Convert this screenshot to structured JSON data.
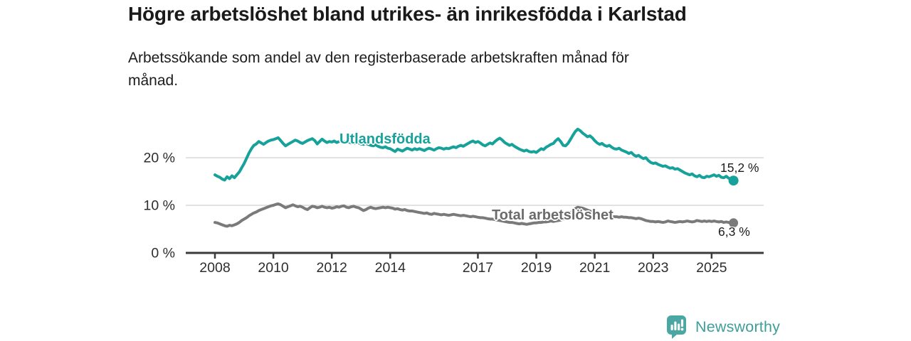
{
  "header": {
    "title": "Högre arbetslöshet bland utrikes- än inrikesfödda i Karlstad",
    "subtitle_lines": [
      "Arbetssökande som andel av den registerbaserade arbetskraften månad för",
      "månad."
    ]
  },
  "branding": {
    "name": "Newsworthy",
    "logo_icon": "newsworthy-speech-bubble-bar-chart-icon",
    "accent_color": "#4aa7a2",
    "text_color": "#3f9e99"
  },
  "chart_data": {
    "type": "line",
    "title": "Högre arbetslöshet bland utrikes- än inrikesfödda i Karlstad",
    "subtitle": "Arbetssökande som andel av den registerbaserade arbetskraften månad för månad.",
    "xlabel": "",
    "ylabel": "",
    "unit": "%",
    "grid": "horizontal",
    "legend_position": "inline-labels",
    "x_range": [
      2008.0,
      2025.75
    ],
    "ylim": [
      0,
      27.5
    ],
    "x_ticks": [
      2008,
      2010,
      2012,
      2014,
      2017,
      2019,
      2021,
      2023,
      2025
    ],
    "y_ticks": [
      {
        "value": 0,
        "label": "0 %"
      },
      {
        "value": 10,
        "label": "10 %"
      },
      {
        "value": 20,
        "label": "20 %"
      }
    ],
    "series": [
      {
        "id": "utlandsfodda",
        "name": "Utlandsfödda",
        "color": "#16a29a",
        "end_label": "15,2 %",
        "end_value": 15.2,
        "dot_radius": 7,
        "start": [
          2008,
          1
        ],
        "frequency": "monthly",
        "values": [
          16.4,
          16.1,
          15.9,
          15.5,
          15.3,
          16.0,
          15.6,
          16.2,
          15.8,
          16.4,
          17.0,
          17.9,
          18.8,
          19.9,
          21.0,
          21.9,
          22.6,
          22.9,
          23.4,
          23.1,
          22.8,
          23.2,
          23.5,
          23.7,
          23.8,
          24.0,
          24.2,
          23.6,
          23.0,
          22.5,
          22.8,
          23.1,
          23.4,
          23.7,
          23.5,
          23.2,
          23.0,
          23.3,
          23.6,
          23.8,
          24.0,
          23.6,
          22.9,
          23.4,
          23.9,
          23.5,
          23.2,
          23.4,
          23.3,
          23.5,
          23.2,
          23.4,
          23.6,
          23.4,
          23.2,
          23.3,
          23.1,
          23.0,
          23.2,
          23.1,
          22.9,
          22.8,
          23.0,
          22.8,
          22.6,
          22.5,
          22.7,
          22.4,
          22.2,
          22.1,
          22.3,
          22.0,
          21.9,
          21.6,
          21.3,
          21.8,
          21.6,
          21.4,
          21.7,
          22.0,
          21.8,
          21.6,
          21.9,
          21.7,
          21.9,
          21.7,
          21.5,
          21.8,
          22.0,
          21.8,
          21.6,
          21.9,
          22.1,
          22.0,
          21.8,
          22.0,
          21.9,
          22.1,
          22.3,
          22.1,
          22.4,
          22.6,
          22.4,
          22.7,
          23.0,
          23.3,
          23.5,
          23.2,
          23.4,
          23.1,
          22.7,
          22.5,
          22.8,
          23.1,
          22.9,
          23.4,
          23.8,
          24.1,
          23.7,
          23.2,
          22.9,
          22.6,
          22.8,
          22.4,
          22.1,
          21.8,
          21.6,
          21.4,
          21.6,
          21.3,
          21.2,
          21.3,
          21.1,
          21.5,
          21.9,
          21.7,
          22.2,
          22.5,
          22.8,
          23.0,
          23.6,
          24.0,
          23.4,
          22.6,
          22.5,
          23.0,
          23.8,
          24.7,
          25.5,
          26.0,
          25.7,
          25.2,
          24.8,
          24.4,
          24.6,
          24.2,
          23.6,
          23.1,
          22.8,
          23.0,
          22.6,
          22.4,
          22.6,
          22.2,
          21.9,
          21.8,
          22.0,
          21.6,
          21.4,
          21.2,
          20.9,
          21.1,
          20.6,
          20.3,
          20.5,
          20.1,
          19.8,
          20.0,
          19.4,
          19.0,
          18.8,
          18.9,
          18.6,
          18.4,
          18.2,
          18.3,
          18.0,
          17.8,
          17.9,
          17.6,
          17.7,
          17.4,
          17.1,
          16.8,
          16.6,
          16.4,
          16.6,
          16.2,
          16.0,
          16.3,
          15.9,
          15.8,
          16.1,
          16.0,
          16.2,
          16.4,
          16.1,
          16.3,
          15.9,
          15.8,
          16.1,
          15.7,
          15.5,
          15.2
        ]
      },
      {
        "id": "total",
        "name": "Total arbetslöshet",
        "color": "#7a7a7a",
        "end_label": "6,3 %",
        "end_value": 6.3,
        "dot_radius": 6.5,
        "start": [
          2008,
          1
        ],
        "frequency": "monthly",
        "values": [
          6.4,
          6.3,
          6.1,
          5.9,
          5.7,
          5.6,
          5.8,
          5.7,
          5.9,
          6.1,
          6.4,
          6.8,
          7.1,
          7.4,
          7.8,
          8.1,
          8.4,
          8.6,
          8.9,
          9.1,
          9.3,
          9.5,
          9.7,
          9.9,
          10.0,
          10.2,
          10.3,
          10.1,
          9.8,
          9.5,
          9.7,
          9.9,
          10.1,
          9.9,
          9.7,
          9.8,
          9.6,
          9.3,
          9.1,
          9.5,
          9.8,
          9.7,
          9.5,
          9.6,
          9.8,
          9.6,
          9.5,
          9.6,
          9.4,
          9.5,
          9.7,
          9.6,
          9.8,
          9.9,
          9.6,
          9.5,
          9.7,
          9.8,
          9.6,
          9.5,
          9.2,
          8.9,
          9.1,
          9.4,
          9.6,
          9.4,
          9.3,
          9.4,
          9.5,
          9.6,
          9.5,
          9.6,
          9.5,
          9.4,
          9.2,
          9.3,
          9.1,
          9.0,
          9.1,
          8.9,
          8.8,
          8.8,
          8.7,
          8.6,
          8.5,
          8.4,
          8.3,
          8.4,
          8.2,
          8.1,
          8.3,
          8.2,
          8.1,
          8.0,
          8.1,
          8.0,
          7.9,
          8.0,
          8.1,
          8.0,
          7.9,
          7.8,
          7.9,
          7.8,
          7.7,
          7.6,
          7.7,
          7.6,
          7.5,
          7.4,
          7.4,
          7.3,
          7.2,
          7.1,
          7.1,
          7.0,
          6.9,
          6.8,
          6.7,
          6.6,
          6.5,
          6.4,
          6.4,
          6.3,
          6.2,
          6.1,
          6.2,
          6.1,
          6.0,
          6.1,
          6.2,
          6.3,
          6.3,
          6.4,
          6.4,
          6.5,
          6.5,
          6.6,
          6.7,
          6.6,
          6.7,
          6.8,
          6.9,
          7.1,
          7.3,
          7.7,
          8.3,
          8.9,
          9.3,
          9.6,
          9.5,
          9.4,
          9.2,
          9.0,
          8.8,
          8.6,
          8.5,
          8.3,
          8.2,
          8.0,
          7.9,
          7.8,
          7.7,
          7.7,
          7.6,
          7.6,
          7.5,
          7.6,
          7.5,
          7.5,
          7.4,
          7.4,
          7.3,
          7.2,
          7.3,
          7.2,
          7.0,
          6.8,
          6.7,
          6.6,
          6.6,
          6.5,
          6.6,
          6.5,
          6.4,
          6.5,
          6.7,
          6.6,
          6.5,
          6.4,
          6.5,
          6.6,
          6.5,
          6.6,
          6.7,
          6.6,
          6.5,
          6.6,
          6.8,
          6.7,
          6.6,
          6.7,
          6.6,
          6.7,
          6.6,
          6.7,
          6.6,
          6.5,
          6.6,
          6.4,
          6.5,
          6.4,
          6.3,
          6.3
        ]
      }
    ]
  }
}
